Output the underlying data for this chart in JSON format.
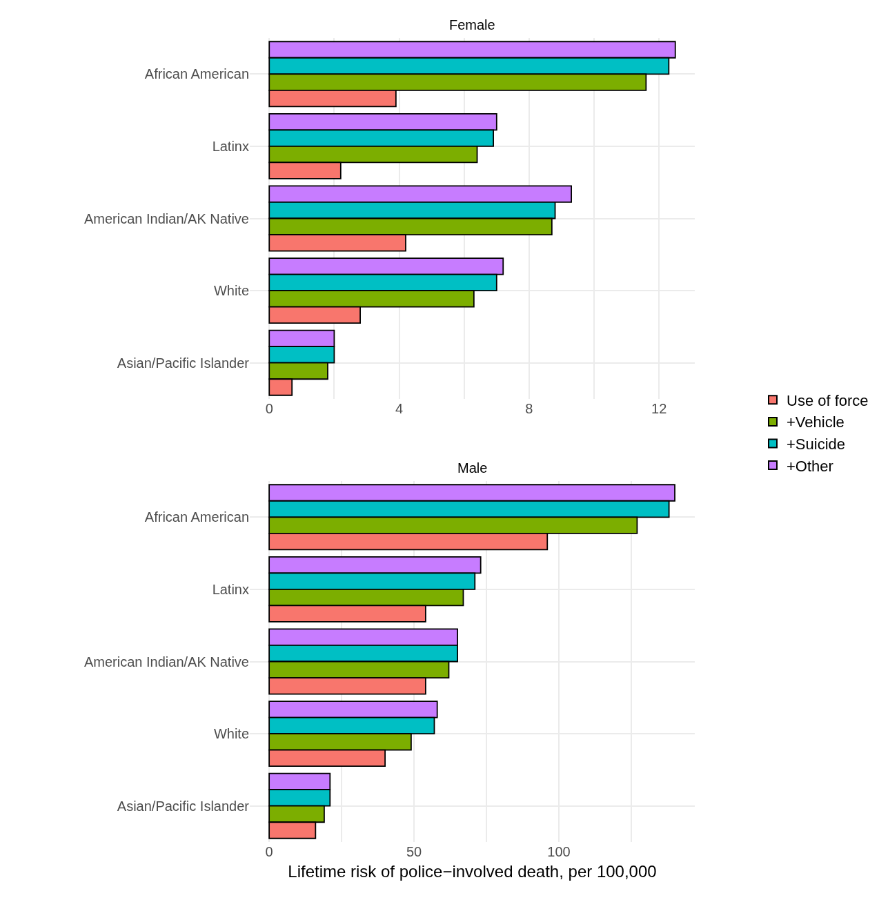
{
  "chart_data": [
    {
      "type": "bar",
      "orientation": "horizontal",
      "title": "Female",
      "categories": [
        "African American",
        "Latinx",
        "American Indian/AK Native",
        "White",
        "Asian/Pacific Islander"
      ],
      "series": [
        {
          "name": "Use of force",
          "color": "#f8766d",
          "values": [
            3.9,
            2.2,
            4.2,
            2.8,
            0.7
          ]
        },
        {
          "name": "+Vehicle",
          "color": "#7cae00",
          "values": [
            11.6,
            6.4,
            8.7,
            6.3,
            1.8
          ]
        },
        {
          "name": "+Suicide",
          "color": "#00bfc4",
          "values": [
            12.3,
            6.9,
            8.8,
            7.0,
            2.0
          ]
        },
        {
          "name": "+Other",
          "color": "#c77cff",
          "values": [
            12.5,
            7.0,
            9.3,
            7.2,
            2.0
          ]
        }
      ],
      "xlim": [
        -0.6,
        13.1
      ],
      "xticks": [
        0,
        {
          "value": 2,
          "label": null
        },
        4,
        {
          "value": 6,
          "label": null
        },
        8,
        {
          "value": 10,
          "label": null
        },
        12
      ],
      "grid": true,
      "legend": "right"
    },
    {
      "type": "bar",
      "orientation": "horizontal",
      "title": "Male",
      "xlabel": "Lifetime risk of police−involved death, per 100,000",
      "categories": [
        "African American",
        "Latinx",
        "American Indian/AK Native",
        "White",
        "Asian/Pacific Islander"
      ],
      "series": [
        {
          "color": "#f8766d",
          "values": [
            96,
            54,
            54,
            40,
            16
          ]
        },
        {
          "color": "#7cae00",
          "values": [
            127,
            67,
            62,
            49,
            19
          ]
        },
        {
          "color": "#00bfc4",
          "values": [
            138,
            71,
            65,
            57,
            21
          ]
        },
        {
          "color": "#c77cff",
          "values": [
            140,
            73,
            65,
            58,
            21
          ]
        }
      ],
      "xlim": [
        -6.7,
        146.9
      ],
      "xticks": [
        0,
        {
          "value": 25,
          "label": null
        },
        50,
        {
          "value": 75,
          "label": null
        },
        100,
        {
          "value": 125,
          "label": null
        }
      ],
      "grid": true,
      "legend": "right"
    }
  ]
}
